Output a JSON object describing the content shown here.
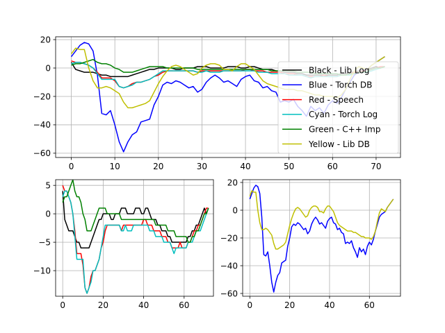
{
  "chart_data": [
    {
      "type": "line",
      "title": "",
      "xlabel": "",
      "ylabel": "",
      "xlim": [
        -3.6,
        75.6
      ],
      "ylim": [
        -63,
        22
      ],
      "xticks": [
        0,
        10,
        20,
        30,
        40,
        50,
        60,
        70
      ],
      "yticks": [
        -60,
        -40,
        -20,
        0,
        20
      ],
      "grid": true,
      "legend_position": "right",
      "series": [
        {
          "name": "Black - Lib Log",
          "color": "#000000",
          "x": [
            0,
            1,
            2,
            3,
            4,
            5,
            6,
            7,
            8,
            9,
            10,
            11,
            12,
            13,
            14,
            15,
            16,
            17,
            18,
            19,
            20,
            21,
            22,
            23,
            24,
            25,
            26,
            27,
            28,
            29,
            30,
            31,
            32,
            33,
            34,
            35,
            36,
            37,
            38,
            39,
            40,
            41,
            42,
            43,
            44,
            45,
            46,
            47,
            48,
            49,
            50,
            51,
            52,
            53,
            54,
            55,
            56,
            57,
            58,
            59,
            60,
            61,
            62,
            63,
            64,
            65,
            66,
            67,
            68,
            69,
            70,
            71,
            72
          ],
          "y": [
            4,
            -1,
            -2,
            -3,
            -3,
            -3,
            -4,
            -5,
            -5,
            -6,
            -6,
            -6,
            -6,
            -6,
            -5,
            -4,
            -3,
            -2,
            -1,
            -1,
            0,
            0,
            0,
            0,
            -1,
            -1,
            0,
            0,
            0,
            1,
            1,
            1,
            0,
            0,
            0,
            0,
            1,
            1,
            1,
            0,
            0,
            1,
            1,
            0,
            -1,
            -1,
            -1,
            -2,
            -2,
            -3,
            -3,
            -3,
            -4,
            -4,
            -5,
            -5,
            -5,
            -5,
            -5,
            -5,
            -5,
            -5,
            -4,
            -4,
            -3,
            -3,
            -2,
            -2,
            -1,
            0,
            1,
            0,
            1
          ]
        },
        {
          "name": "Blue - Torch DB",
          "color": "#0000ff",
          "x": [
            0,
            1,
            2,
            3,
            4,
            5,
            6,
            7,
            8,
            9,
            10,
            11,
            12,
            13,
            14,
            15,
            16,
            17,
            18,
            19,
            20,
            21,
            22,
            23,
            24,
            25,
            26,
            27,
            28,
            29,
            30,
            31,
            32,
            33,
            34,
            35,
            36,
            37,
            38,
            39,
            40,
            41,
            42,
            43,
            44,
            45,
            46,
            47,
            48,
            49,
            50,
            51,
            52,
            53,
            54,
            55,
            56,
            57,
            58,
            59,
            60,
            61,
            62,
            63,
            64,
            65,
            66,
            67,
            68,
            69,
            70,
            71,
            72
          ],
          "y": [
            8,
            12,
            16,
            18,
            17,
            12,
            -5,
            -32,
            -33,
            -30,
            -40,
            -52,
            -59,
            -52,
            -47,
            -45,
            -38,
            -37,
            -36,
            -26,
            -20,
            -12,
            -10,
            -11,
            -9,
            -10,
            -12,
            -14,
            -13,
            -17,
            -15,
            -10,
            -7,
            -5,
            -7,
            -10,
            -9,
            -11,
            -13,
            -8,
            -6,
            -5,
            -9,
            -10,
            -14,
            -13,
            -16,
            -17,
            -24,
            -23,
            -24,
            -22,
            -27,
            -30,
            -34,
            -27,
            -30,
            -28,
            -32,
            -26,
            -23,
            -25,
            -21,
            -15,
            -10,
            -5,
            -3,
            -2,
            -1,
            2,
            4,
            6,
            8
          ]
        },
        {
          "name": "Red - Speech",
          "color": "#ff0000",
          "x": [
            0,
            1,
            2,
            3,
            4,
            5,
            6,
            7,
            8,
            9,
            10,
            11,
            12,
            13,
            14,
            15,
            16,
            17,
            18,
            19,
            20,
            21,
            22,
            23,
            24,
            25,
            26,
            27,
            28,
            29,
            30,
            31,
            32,
            33,
            34,
            35,
            36,
            37,
            38,
            39,
            40,
            41,
            42,
            43,
            44,
            45,
            46,
            47,
            48,
            49,
            50,
            51,
            52,
            53,
            54,
            55,
            56,
            57,
            58,
            59,
            60,
            61,
            62,
            63,
            64,
            65,
            66,
            67,
            68,
            69,
            70,
            71,
            72
          ],
          "y": [
            5,
            4,
            4,
            3,
            2,
            0,
            -3,
            -7,
            -7,
            -7,
            -9,
            -13,
            -14,
            -13,
            -11,
            -10,
            -10,
            -9,
            -8,
            -6,
            -5,
            -3,
            -2,
            -2,
            -2,
            -2,
            -2,
            -2,
            -2,
            -3,
            -2,
            -2,
            -2,
            -2,
            -2,
            -2,
            -2,
            -2,
            -2,
            -2,
            -1,
            -1,
            -2,
            -2,
            -2,
            -3,
            -3,
            -3,
            -3,
            -4,
            -4,
            -4,
            -5,
            -5,
            -6,
            -6,
            -6,
            -6,
            -5,
            -6,
            -6,
            -6,
            -5,
            -5,
            -4,
            -3,
            -3,
            -2,
            -2,
            -1,
            0,
            1,
            1
          ]
        },
        {
          "name": "Cyan - Torch Log",
          "color": "#00bfbf",
          "x": [
            0,
            1,
            2,
            3,
            4,
            5,
            6,
            7,
            8,
            9,
            10,
            11,
            12,
            13,
            14,
            15,
            16,
            17,
            18,
            19,
            20,
            21,
            22,
            23,
            24,
            25,
            26,
            27,
            28,
            29,
            30,
            31,
            32,
            33,
            34,
            35,
            36,
            37,
            38,
            39,
            40,
            41,
            42,
            43,
            44,
            45,
            46,
            47,
            48,
            49,
            50,
            51,
            52,
            53,
            54,
            55,
            56,
            57,
            58,
            59,
            60,
            61,
            62,
            63,
            64,
            65,
            66,
            67,
            68,
            69,
            70,
            71,
            72
          ],
          "y": [
            3,
            4,
            4,
            3,
            2,
            0,
            -4,
            -8,
            -8,
            -8,
            -8,
            -13,
            -14,
            -13,
            -12,
            -10,
            -10,
            -9,
            -8,
            -6,
            -4,
            -2,
            -2,
            -2,
            -2,
            -2,
            -2,
            -2,
            -2,
            -3,
            -3,
            -2,
            -3,
            -3,
            -3,
            -2,
            -2,
            -2,
            -2,
            -2,
            -2,
            -2,
            -2,
            -3,
            -3,
            -3,
            -4,
            -4,
            -4,
            -4,
            -5,
            -5,
            -5,
            -5,
            -6,
            -7,
            -6,
            -6,
            -6,
            -6,
            -6,
            -6,
            -5,
            -5,
            -5,
            -4,
            -3,
            -3,
            -3,
            -2,
            -1,
            0,
            1
          ]
        },
        {
          "name": "Green - C++ Imp",
          "color": "#008000",
          "x": [
            0,
            1,
            2,
            3,
            4,
            5,
            6,
            7,
            8,
            9,
            10,
            11,
            12,
            13,
            14,
            15,
            16,
            17,
            18,
            19,
            20,
            21,
            22,
            23,
            24,
            25,
            26,
            27,
            28,
            29,
            30,
            31,
            32,
            33,
            34,
            35,
            36,
            37,
            38,
            39,
            40,
            41,
            42,
            43,
            44,
            45,
            46,
            47,
            48,
            49,
            50,
            51,
            52,
            53,
            54,
            55,
            56,
            57,
            58,
            59,
            60,
            61,
            62,
            63,
            64,
            65,
            66,
            67,
            68,
            69,
            70,
            71,
            72
          ],
          "y": [
            2,
            3,
            3,
            4,
            5,
            6,
            4,
            3,
            3,
            2,
            0,
            -1,
            -3,
            -3,
            -3,
            -2,
            -1,
            0,
            1,
            1,
            1,
            1,
            0,
            0,
            0,
            0,
            0,
            0,
            0,
            -1,
            -1,
            -1,
            -1,
            -1,
            -1,
            -1,
            -1,
            -1,
            -1,
            -1,
            -1,
            -1,
            -1,
            -1,
            -1,
            -1,
            -2,
            -2,
            -2,
            -2,
            -2,
            -2,
            -3,
            -3,
            -3,
            -3,
            -4,
            -4,
            -4,
            -4,
            -4,
            -4,
            -5,
            -5,
            -4,
            -4,
            -3,
            -3,
            -2,
            -1,
            0,
            0,
            1
          ]
        },
        {
          "name": "Yellow - Lib DB",
          "color": "#bfbf00",
          "x": [
            0,
            1,
            2,
            3,
            4,
            5,
            6,
            7,
            8,
            9,
            10,
            11,
            12,
            13,
            14,
            15,
            16,
            17,
            18,
            19,
            20,
            21,
            22,
            23,
            24,
            25,
            26,
            27,
            28,
            29,
            30,
            31,
            32,
            33,
            34,
            35,
            36,
            37,
            38,
            39,
            40,
            41,
            42,
            43,
            44,
            45,
            46,
            47,
            48,
            49,
            50,
            51,
            52,
            53,
            54,
            55,
            56,
            57,
            58,
            59,
            60,
            61,
            62,
            63,
            64,
            65,
            66,
            67,
            68,
            69,
            70,
            71,
            72
          ],
          "y": [
            10,
            14,
            13,
            13,
            0,
            -9,
            -14,
            -14,
            -13,
            -14,
            -16,
            -18,
            -24,
            -28,
            -28,
            -27,
            -26,
            -25,
            -23,
            -17,
            -11,
            -6,
            -2,
            1,
            2,
            1,
            -1,
            -3,
            -5,
            -4,
            0,
            2,
            3,
            3,
            2,
            -1,
            -1,
            -2,
            1,
            3,
            3,
            1,
            -1,
            -5,
            -9,
            -11,
            -12,
            -13,
            -14,
            -15,
            -15,
            -15,
            -16,
            -16,
            -17,
            -18,
            -19,
            -19,
            -20,
            -20,
            -20,
            -21,
            -19,
            -15,
            -8,
            -2,
            1,
            0,
            -1,
            2,
            4,
            6,
            8
          ]
        }
      ]
    },
    {
      "type": "line",
      "title": "",
      "xlabel": "",
      "ylabel": "",
      "xlim": [
        -3.5,
        74.5
      ],
      "ylim": [
        -14.5,
        6
      ],
      "xticks": [
        0,
        20,
        40,
        60
      ],
      "yticks": [
        -10,
        -5,
        0,
        5
      ],
      "grid": true,
      "series_refs": [
        "Black - Lib Log",
        "Red - Speech",
        "Cyan - Torch Log",
        "Green - C++ Imp"
      ]
    },
    {
      "type": "line",
      "title": "",
      "xlabel": "",
      "ylabel": "",
      "xlim": [
        -3.6,
        75.6
      ],
      "ylim": [
        -62,
        22
      ],
      "xticks": [
        0,
        20,
        40,
        60
      ],
      "yticks": [
        -60,
        -40,
        -20,
        0,
        20
      ],
      "grid": true,
      "series_refs": [
        "Blue - Torch DB",
        "Yellow - Lib DB"
      ]
    }
  ]
}
